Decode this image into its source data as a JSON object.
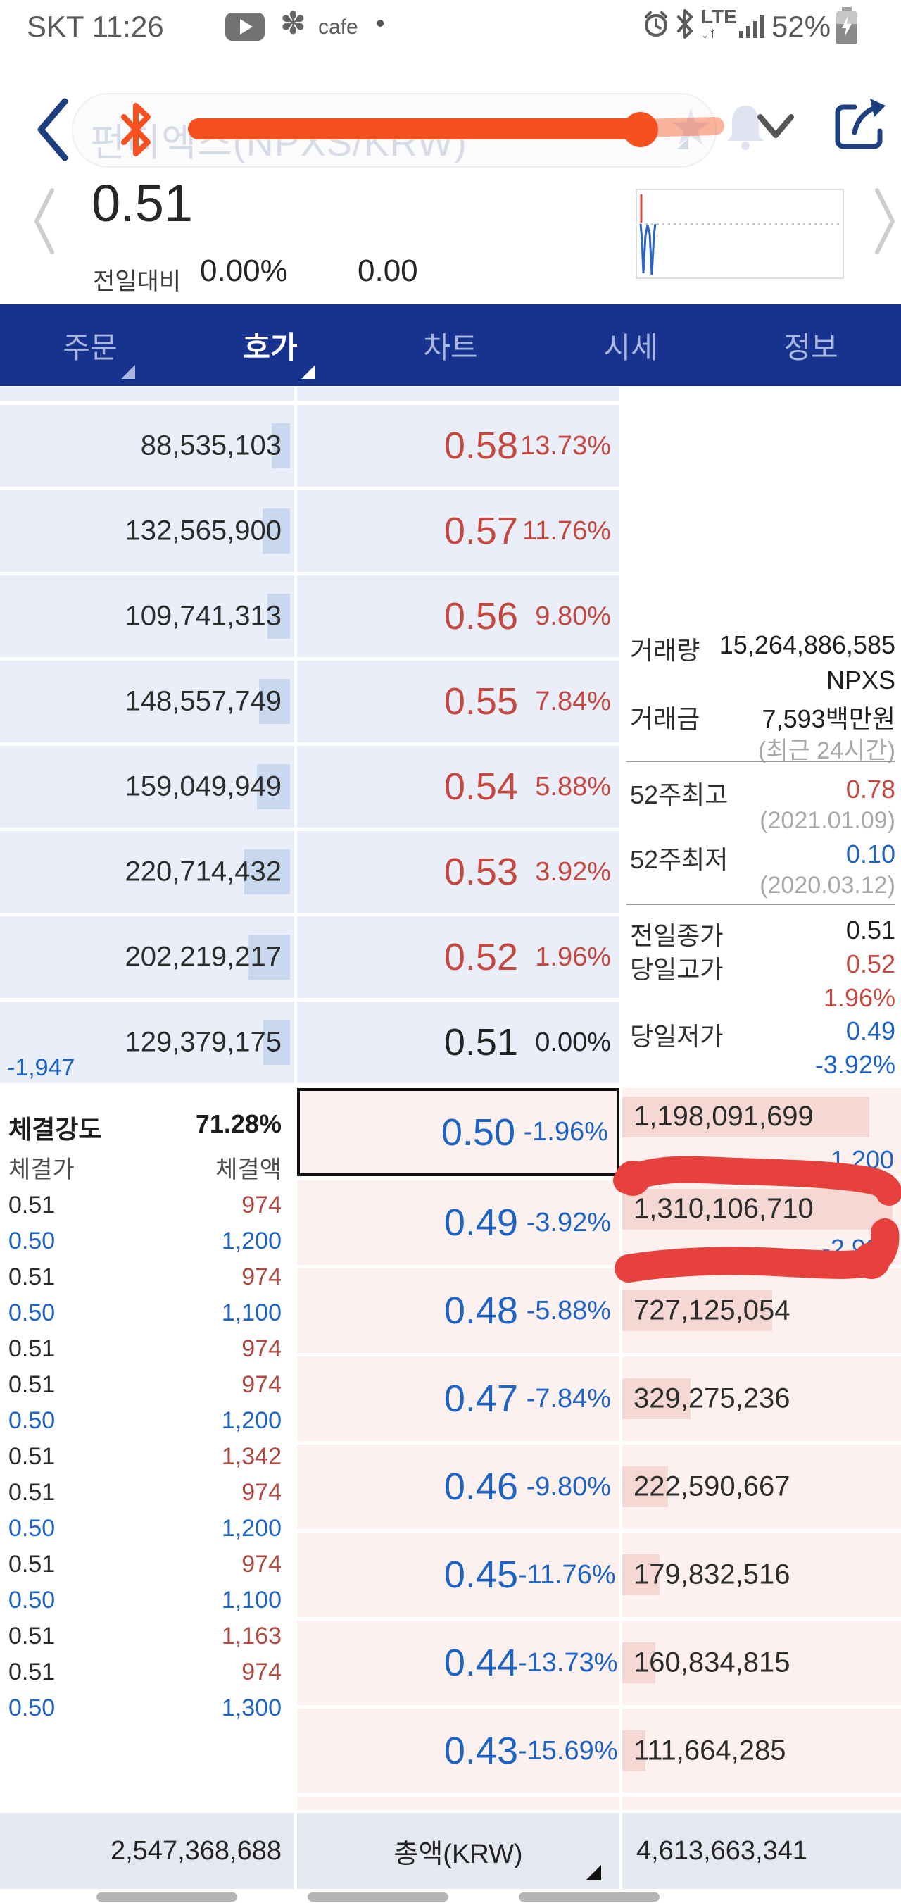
{
  "colors": {
    "navy": "#17338e",
    "tab_inactive": "#a9b6e0",
    "red": "#c4483f",
    "blue": "#1d63c4",
    "trade_red": "#ae4a41",
    "ask_bg": "#e9eef8",
    "bid_bg": "#fdf1ef",
    "ask_bar": "#c9d8ef",
    "bid_bar": "#f5d8d4",
    "marker_red": "#e6413c",
    "marker_orange": "#f4511e",
    "footer_bg": "#e5e8f1",
    "pill_text": "#d6dbe8"
  },
  "status_bar": {
    "carrier_time": "SKT 11:26",
    "notification_label": "cafe",
    "separator_dot": "•",
    "network": "LTE",
    "battery": "52%"
  },
  "header": {
    "title": "펀디엑스(NPXS/KRW)"
  },
  "price_summary": {
    "price": "0.51",
    "change_label": "전일대비",
    "change_percent": "0.00%",
    "change_value": "0.00"
  },
  "tabs": [
    {
      "label": "주문",
      "active": false,
      "triangle": true
    },
    {
      "label": "호가",
      "active": true,
      "triangle": true
    },
    {
      "label": "차트",
      "active": false,
      "triangle": false
    },
    {
      "label": "시세",
      "active": false,
      "triangle": false
    },
    {
      "label": "정보",
      "active": false,
      "triangle": false
    }
  ],
  "order_book": {
    "asks": [
      {
        "quantity": "88,535,103",
        "price": "0.58",
        "percent": "13.73%"
      },
      {
        "quantity": "132,565,900",
        "price": "0.57",
        "percent": "11.76%"
      },
      {
        "quantity": "109,741,313",
        "price": "0.56",
        "percent": "9.80%"
      },
      {
        "quantity": "148,557,749",
        "price": "0.55",
        "percent": "7.84%"
      },
      {
        "quantity": "159,049,949",
        "price": "0.54",
        "percent": "5.88%"
      },
      {
        "quantity": "220,714,432",
        "price": "0.53",
        "percent": "3.92%"
      },
      {
        "quantity": "202,219,217",
        "price": "0.52",
        "percent": "1.96%"
      },
      {
        "quantity": "129,379,175",
        "price": "0.51",
        "percent": "0.00%",
        "neutral": true,
        "pending_change": "-1,947"
      }
    ],
    "bids": [
      {
        "price": "0.50",
        "percent": "-1.96%",
        "quantity": "1,198,091,699",
        "change": "1,200",
        "highlight": true
      },
      {
        "price": "0.49",
        "percent": "-3.92%",
        "quantity": "1,310,106,710",
        "change": "-2,998"
      },
      {
        "price": "0.48",
        "percent": "-5.88%",
        "quantity": "727,125,054"
      },
      {
        "price": "0.47",
        "percent": "-7.84%",
        "quantity": "329,275,236"
      },
      {
        "price": "0.46",
        "percent": "-9.80%",
        "quantity": "222,590,667"
      },
      {
        "price": "0.45",
        "percent": "-11.76%",
        "quantity": "179,832,516"
      },
      {
        "price": "0.44",
        "percent": "-13.73%",
        "quantity": "160,834,815"
      },
      {
        "price": "0.43",
        "percent": "-15.69%",
        "quantity": "111,664,285"
      }
    ]
  },
  "market_info": [
    {
      "label": "거래량",
      "value": "15,264,886,585",
      "unit": "NPXS"
    },
    {
      "label": "거래금",
      "value": "7,593백만원",
      "note": "(최근 24시간)"
    },
    {
      "label": "52주최고",
      "value": "0.78",
      "color": "red",
      "note": "(2021.01.09)"
    },
    {
      "label": "52주최저",
      "value": "0.10",
      "color": "blue",
      "note": "(2020.03.12)"
    },
    {
      "label": "전일종가",
      "value": "0.51"
    },
    {
      "label": "당일고가",
      "value": "0.52",
      "color": "red",
      "extra": "1.96%"
    },
    {
      "label": "당일저가",
      "value": "0.49",
      "color": "blue",
      "extra": "-3.92%"
    }
  ],
  "trade_panel": {
    "strength_label": "체결강도",
    "strength_value": "71.28%",
    "price_header": "체결가",
    "amount_header": "체결액",
    "trades": [
      {
        "price": "0.51",
        "amount": "974"
      },
      {
        "price": "0.50",
        "amount": "1,200"
      },
      {
        "price": "0.51",
        "amount": "974"
      },
      {
        "price": "0.50",
        "amount": "1,100"
      },
      {
        "price": "0.51",
        "amount": "974"
      },
      {
        "price": "0.51",
        "amount": "974"
      },
      {
        "price": "0.50",
        "amount": "1,200"
      },
      {
        "price": "0.51",
        "amount": "1,342"
      },
      {
        "price": "0.51",
        "amount": "974"
      },
      {
        "price": "0.50",
        "amount": "1,200"
      },
      {
        "price": "0.51",
        "amount": "974"
      },
      {
        "price": "0.50",
        "amount": "1,100"
      },
      {
        "price": "0.51",
        "amount": "1,163"
      },
      {
        "price": "0.51",
        "amount": "974"
      },
      {
        "price": "0.50",
        "amount": "1,300"
      }
    ]
  },
  "footer": {
    "bid_total": "2,547,368,688",
    "total_label": "총액(KRW)",
    "ask_total": "4,613,663,341"
  }
}
